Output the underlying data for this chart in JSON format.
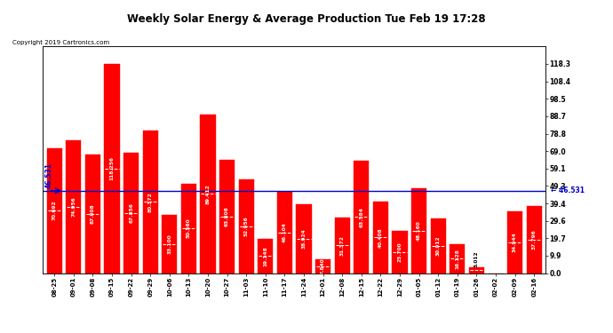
{
  "title": "Weekly Solar Energy & Average Production Tue Feb 19 17:28",
  "copyright": "Copyright 2019 Cartronics.com",
  "categories": [
    "08-25",
    "09-01",
    "09-08",
    "09-15",
    "09-22",
    "09-29",
    "10-06",
    "10-13",
    "10-20",
    "10-27",
    "11-03",
    "11-10",
    "11-17",
    "11-24",
    "12-01",
    "12-08",
    "12-15",
    "12-22",
    "12-29",
    "01-05",
    "01-12",
    "01-19",
    "01-26",
    "02-02",
    "02-09",
    "02-16"
  ],
  "values": [
    70.692,
    74.956,
    67.008,
    118.256,
    67.856,
    80.372,
    33.1,
    50.56,
    89.412,
    63.808,
    52.956,
    19.148,
    46.104,
    38.924,
    7.84,
    31.372,
    63.584,
    40.408,
    23.7,
    48.16,
    30.912,
    16.128,
    3.012,
    0.0,
    34.944,
    37.796
  ],
  "average": 46.531,
  "bar_color": "#ff0000",
  "average_line_color": "#0000cc",
  "background_color": "#ffffff",
  "grid_color": "#bbbbbb",
  "title_color": "#000000",
  "yticks_right": [
    0.0,
    9.9,
    19.7,
    29.6,
    39.4,
    49.3,
    59.1,
    69.0,
    78.8,
    88.7,
    98.5,
    108.4,
    118.3
  ],
  "legend_avg_color": "#0000cc",
  "legend_weekly_color": "#ff0000",
  "annotation_avg": "46.531",
  "value_text_color": "#ffffff",
  "ymax": 128.0,
  "ymin": 0.0
}
